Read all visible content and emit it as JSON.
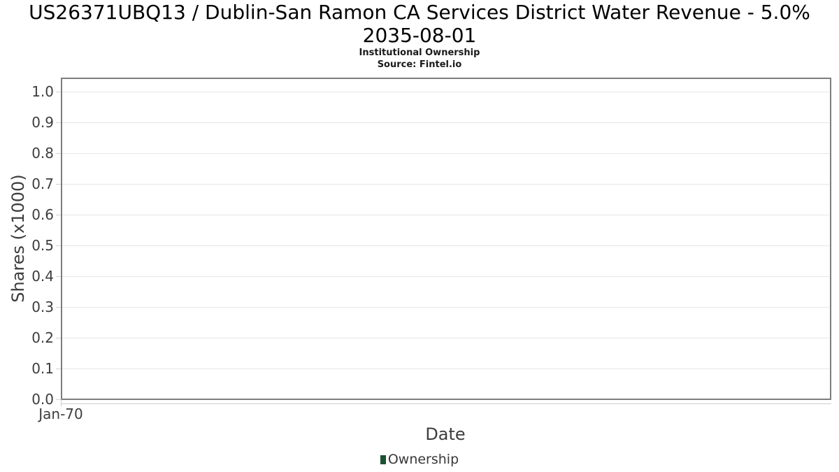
{
  "header": {
    "title_line1": "US26371UBQ13 / Dublin-San Ramon CA Services District Water Revenue - 5.0%",
    "title_line2": "2035-08-01",
    "subtitle": "Institutional Ownership",
    "source": "Source: Fintel.io"
  },
  "chart_data": {
    "type": "column",
    "title": "US26371UBQ13 / Dublin-San Ramon CA Services District Water Revenue - 5.0% 2035-08-01",
    "subtitle": "Institutional Ownership",
    "source": "Source: Fintel.io",
    "xlabel": "Date",
    "ylabel": "Shares (x1000)",
    "x_ticks": [
      "Jan-70"
    ],
    "x_tick_fractions": [
      0
    ],
    "y_ticks": [
      "0.0",
      "0.1",
      "0.2",
      "0.3",
      "0.4",
      "0.5",
      "0.6",
      "0.7",
      "0.8",
      "0.9",
      "1.0"
    ],
    "ylim": [
      0.0,
      1.045
    ],
    "grid": "horizontal",
    "legend_position": "bottom-center",
    "series": [
      {
        "name": "Ownership",
        "color": "#1d5230",
        "values": []
      }
    ],
    "colors": {
      "plot_border": "#7d7d7d",
      "gridline": "#e6e6e6",
      "tick_mark": "#d2d2d2",
      "x_axis_line": "#cccccc",
      "tick_label": "#3d3d3d",
      "axis_title": "#3d3d3d",
      "title_text": "#000000",
      "legend_text": "#383838"
    }
  }
}
